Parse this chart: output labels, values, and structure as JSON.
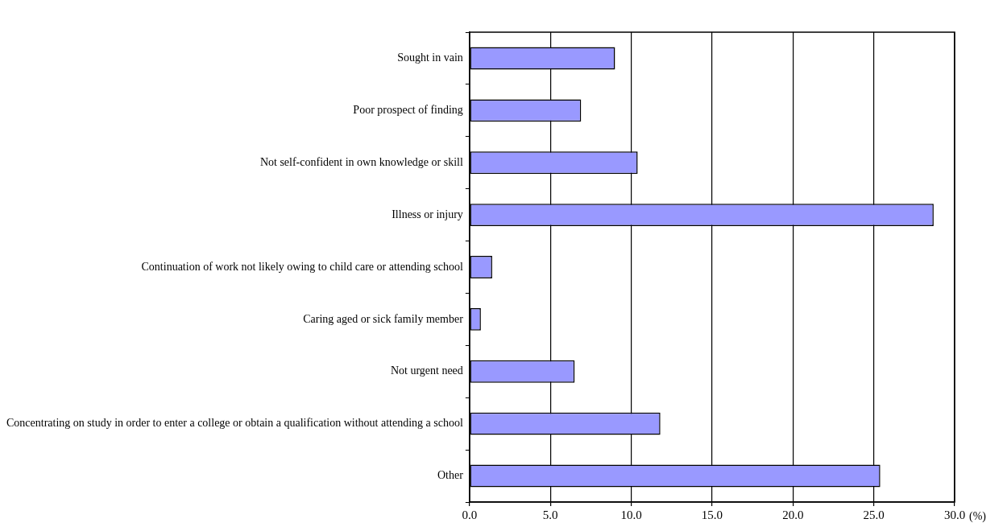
{
  "chart_data": {
    "type": "bar",
    "orientation": "horizontal",
    "xlabel": "(%)",
    "categories": [
      "Sought in vain",
      "Poor prospect of finding",
      "Not self-confident in own knowledge or skill",
      "Illness or injury",
      "Continuation of work not likely owing to child care or attending school",
      "Caring aged or sick family member",
      "Not urgent need",
      "Concentrating on study in order to enter a college or obtain a qualification without attending a school",
      "Other"
    ],
    "values": [
      9.0,
      6.9,
      10.4,
      28.7,
      1.4,
      0.7,
      6.5,
      11.8,
      25.4
    ],
    "color": "#9999ff",
    "xlim": [
      0,
      30
    ],
    "xticks": [
      {
        "value": 0,
        "label": "0.0"
      },
      {
        "value": 5,
        "label": "5.0"
      },
      {
        "value": 10,
        "label": "10.0"
      },
      {
        "value": 15,
        "label": "15.0"
      },
      {
        "value": 20,
        "label": "20.0"
      },
      {
        "value": 25,
        "label": "25.0"
      },
      {
        "value": 30,
        "label": "30.0"
      }
    ],
    "grid": "x"
  }
}
